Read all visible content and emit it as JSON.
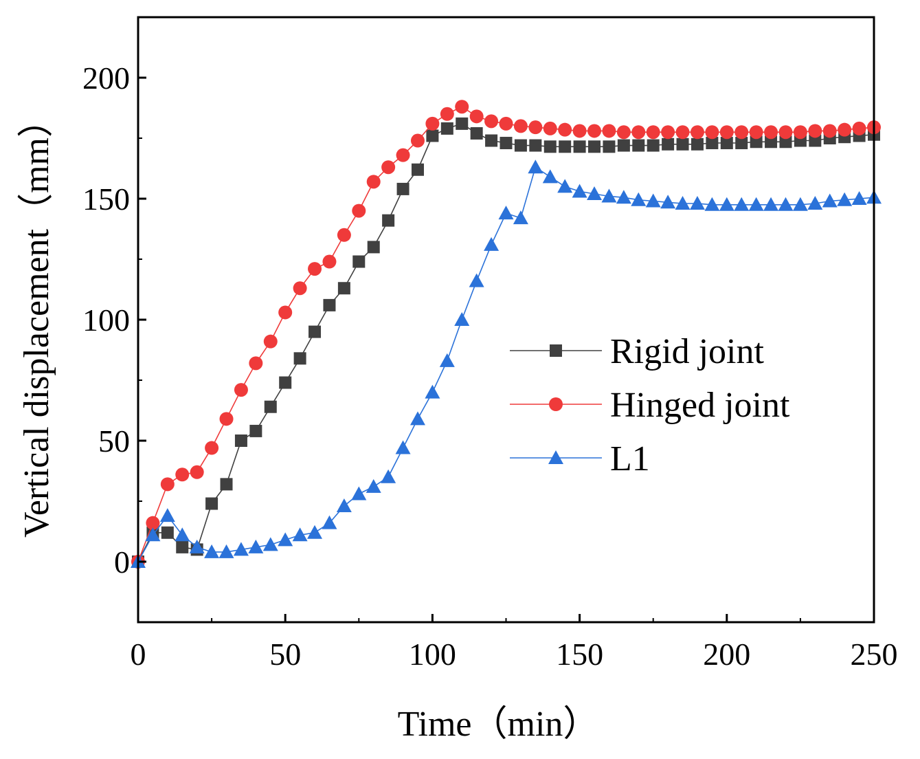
{
  "chart_data": {
    "type": "line",
    "title": "",
    "xlabel": "Time（min）",
    "ylabel": "Vertical displacement（mm）",
    "xlim": [
      0,
      250
    ],
    "ylim": [
      -25,
      225
    ],
    "xticks": [
      0,
      50,
      100,
      150,
      200,
      250
    ],
    "yticks": [
      0,
      50,
      100,
      150,
      200
    ],
    "grid": false,
    "legend_position": "center-right",
    "series": [
      {
        "name": "Rigid joint",
        "color": "#404040",
        "marker": "square",
        "x": [
          0,
          5,
          10,
          15,
          20,
          25,
          30,
          35,
          40,
          45,
          50,
          55,
          60,
          65,
          70,
          75,
          80,
          85,
          90,
          95,
          100,
          105,
          110,
          115,
          120,
          125,
          130,
          135,
          140,
          145,
          150,
          155,
          160,
          165,
          170,
          175,
          180,
          185,
          190,
          195,
          200,
          205,
          210,
          215,
          220,
          225,
          230,
          235,
          240,
          245,
          250
        ],
        "y": [
          0,
          12,
          12,
          6,
          5,
          24,
          32,
          50,
          54,
          64,
          74,
          84,
          95,
          106,
          113,
          124,
          130,
          141,
          154,
          162,
          176,
          179,
          181,
          177,
          174,
          173,
          172,
          172,
          171.5,
          171.5,
          171.5,
          171.5,
          171.5,
          172,
          172,
          172,
          172.5,
          172.5,
          172.5,
          173,
          173,
          173,
          173.5,
          173.5,
          173.5,
          174,
          174,
          175,
          175.5,
          176,
          176.5
        ]
      },
      {
        "name": "Hinged joint",
        "color": "#ef3a3a",
        "marker": "circle",
        "x": [
          0,
          5,
          10,
          15,
          20,
          25,
          30,
          35,
          40,
          45,
          50,
          55,
          60,
          65,
          70,
          75,
          80,
          85,
          90,
          95,
          100,
          105,
          110,
          115,
          120,
          125,
          130,
          135,
          140,
          145,
          150,
          155,
          160,
          165,
          170,
          175,
          180,
          185,
          190,
          195,
          200,
          205,
          210,
          215,
          220,
          225,
          230,
          235,
          240,
          245,
          250
        ],
        "y": [
          0,
          16,
          32,
          36,
          37,
          47,
          59,
          71,
          82,
          91,
          103,
          113,
          121,
          124,
          135,
          145,
          157,
          163,
          168,
          174,
          181,
          185,
          188,
          184,
          182,
          181,
          180,
          179.5,
          179,
          178.5,
          178,
          178,
          178,
          177.5,
          177.5,
          177.5,
          177.5,
          177.5,
          177.5,
          177.5,
          177.5,
          177.5,
          177.5,
          177.5,
          177.5,
          177.5,
          178,
          178,
          178.5,
          179,
          179.5
        ]
      },
      {
        "name": "L1",
        "color": "#2b72d9",
        "marker": "triangle",
        "x": [
          0,
          5,
          10,
          15,
          20,
          25,
          30,
          35,
          40,
          45,
          50,
          55,
          60,
          65,
          70,
          75,
          80,
          85,
          90,
          95,
          100,
          105,
          110,
          115,
          120,
          125,
          130,
          135,
          140,
          145,
          150,
          155,
          160,
          165,
          170,
          175,
          180,
          185,
          190,
          195,
          200,
          205,
          210,
          215,
          220,
          225,
          230,
          235,
          240,
          245,
          250
        ],
        "y": [
          0,
          11,
          19,
          11,
          6,
          4,
          4,
          5,
          6,
          7,
          9,
          11,
          12,
          16,
          23,
          28,
          31,
          35,
          47,
          59,
          70,
          83,
          100,
          116,
          131,
          144,
          142,
          163,
          159,
          155,
          153,
          152,
          151,
          150.5,
          149.5,
          149,
          148.5,
          148,
          148,
          147.5,
          147.5,
          147.5,
          147.5,
          147.5,
          147.5,
          147.5,
          148,
          149,
          149.5,
          150,
          150.5
        ]
      }
    ]
  }
}
